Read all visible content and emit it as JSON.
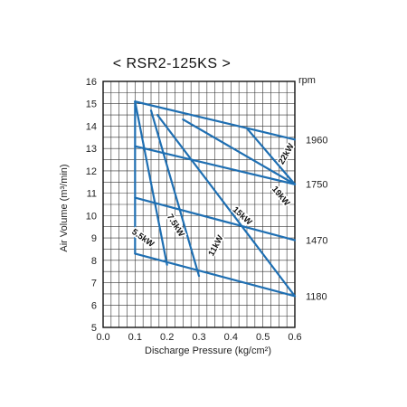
{
  "chart_data": {
    "type": "line",
    "title": "< RSR2-125KS >",
    "xlabel": "Discharge Pressure (kg/cm²)",
    "ylabel": "Air Volume (m³/min)",
    "xlim": [
      0.0,
      0.6
    ],
    "ylim": [
      5,
      16
    ],
    "x_ticks": [
      "0.0",
      "0.1",
      "0.2",
      "0.3",
      "0.4",
      "0.5",
      "0.6"
    ],
    "y_ticks": [
      "5",
      "6",
      "7",
      "8",
      "9",
      "10",
      "11",
      "12",
      "13",
      "14",
      "15",
      "16"
    ],
    "grid": true,
    "right_axis": {
      "title": "rpm",
      "labels": [
        {
          "text": "1960",
          "y": 13.4
        },
        {
          "text": "1750",
          "y": 11.4
        },
        {
          "text": "1470",
          "y": 8.9
        },
        {
          "text": "1180",
          "y": 6.4
        }
      ]
    },
    "speed_series": [
      {
        "name": "1960",
        "points": [
          [
            0.1,
            15.1
          ],
          [
            0.6,
            13.4
          ]
        ]
      },
      {
        "name": "1750",
        "points": [
          [
            0.1,
            13.1
          ],
          [
            0.6,
            11.4
          ]
        ]
      },
      {
        "name": "1470",
        "points": [
          [
            0.1,
            10.8
          ],
          [
            0.6,
            8.9
          ]
        ]
      },
      {
        "name": "1180",
        "points": [
          [
            0.1,
            8.3
          ],
          [
            0.6,
            6.4
          ]
        ]
      }
    ],
    "power_series": [
      {
        "name": "5.5kW",
        "points": [
          [
            0.1,
            15.1
          ],
          [
            0.1,
            8.3
          ]
        ]
      },
      {
        "name": "7.5kW",
        "points": [
          [
            0.1,
            15.1
          ],
          [
            0.2,
            7.8
          ]
        ]
      },
      {
        "name": "11kW",
        "points": [
          [
            0.15,
            14.7
          ],
          [
            0.3,
            7.3
          ]
        ]
      },
      {
        "name": "15kW",
        "points": [
          [
            0.17,
            14.5
          ],
          [
            0.6,
            6.4
          ]
        ]
      },
      {
        "name": "19kW",
        "points": [
          [
            0.25,
            14.3
          ],
          [
            0.6,
            11.4
          ]
        ]
      },
      {
        "name": "22kW",
        "points": [
          [
            0.45,
            13.9
          ],
          [
            0.6,
            11.4
          ]
        ]
      }
    ],
    "power_labels": [
      {
        "text": "22kW",
        "x": 0.58,
        "y": 12.7,
        "angle": -60
      },
      {
        "text": "19kW",
        "x": 0.55,
        "y": 10.8,
        "angle": 50
      },
      {
        "text": "15kW",
        "x": 0.43,
        "y": 9.9,
        "angle": 42
      },
      {
        "text": "11kW",
        "x": 0.36,
        "y": 8.6,
        "angle": -62
      },
      {
        "text": "7.5kW",
        "x": 0.22,
        "y": 9.5,
        "angle": 58
      },
      {
        "text": "5.5kW",
        "x": 0.12,
        "y": 8.9,
        "angle": 35
      }
    ],
    "colors": {
      "lines": "#1f6fb2",
      "grid": "#333333"
    }
  }
}
